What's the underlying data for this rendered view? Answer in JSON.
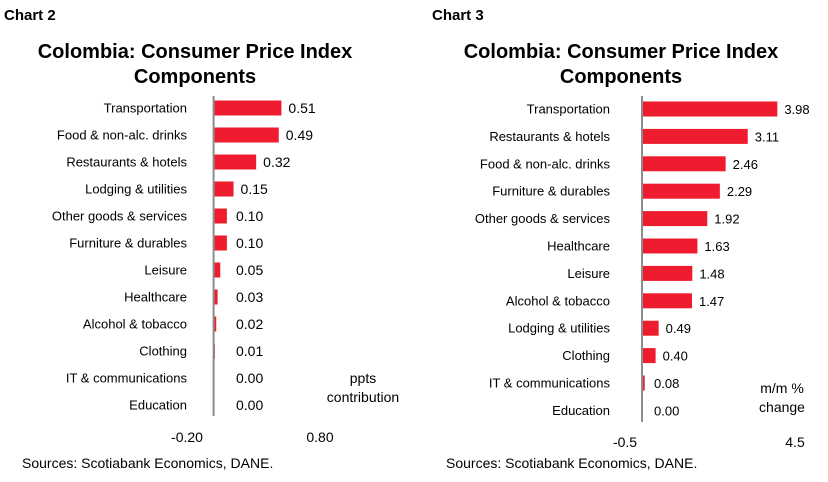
{
  "colors": {
    "bar": "#ee1c2e",
    "axis": "#8c8c8c"
  },
  "chart_data": [
    {
      "type": "bar",
      "orientation": "horizontal",
      "chart_label": "Chart 2",
      "title": "Colombia: Consumer Price Index Components",
      "title_lines": [
        "Colombia: Consumer Price Index",
        "Components"
      ],
      "categories": [
        "Transportation",
        "Food & non-alc. drinks",
        "Restaurants & hotels",
        "Lodging & utilities",
        "Other goods & services",
        "Furniture & durables",
        "Leisure",
        "Healthcare",
        "Alcohol & tobacco",
        "Clothing",
        "IT & communications",
        "Education"
      ],
      "values": [
        0.51,
        0.49,
        0.32,
        0.15,
        0.1,
        0.1,
        0.05,
        0.03,
        0.02,
        0.01,
        0.0,
        0.0
      ],
      "value_labels": [
        "0.51",
        "0.49",
        "0.32",
        "0.15",
        "0.10",
        "0.10",
        "0.05",
        "0.03",
        "0.02",
        "0.01",
        "0.00",
        "0.00"
      ],
      "xlim": [
        -0.2,
        0.8
      ],
      "tick_labels": [
        "-0.20",
        "0.80"
      ],
      "unit_label_lines": [
        "ppts",
        "contribution"
      ],
      "source": "Sources: Scotiabank Economics, DANE."
    },
    {
      "type": "bar",
      "orientation": "horizontal",
      "chart_label": "Chart 3",
      "title": "Colombia: Consumer Price Index Components",
      "title_lines": [
        "Colombia: Consumer Price Index",
        "Components"
      ],
      "categories": [
        "Transportation",
        "Restaurants & hotels",
        "Food & non-alc. drinks",
        "Furniture & durables",
        "Other goods & services",
        "Healthcare",
        "Leisure",
        "Alcohol & tobacco",
        "Lodging & utilities",
        "Clothing",
        "IT & communications",
        "Education"
      ],
      "values": [
        3.98,
        3.11,
        2.46,
        2.29,
        1.92,
        1.63,
        1.48,
        1.47,
        0.49,
        0.4,
        0.08,
        0.0
      ],
      "value_labels": [
        "3.98",
        "3.11",
        "2.46",
        "2.29",
        "1.92",
        "1.63",
        "1.48",
        "1.47",
        "0.49",
        "0.40",
        "0.08",
        "0.00"
      ],
      "xlim": [
        -0.5,
        4.5
      ],
      "tick_labels": [
        "-0.5",
        "4.5"
      ],
      "unit_label_lines": [
        "m/m %",
        "change"
      ],
      "source": "Sources: Scotiabank Economics, DANE."
    }
  ]
}
